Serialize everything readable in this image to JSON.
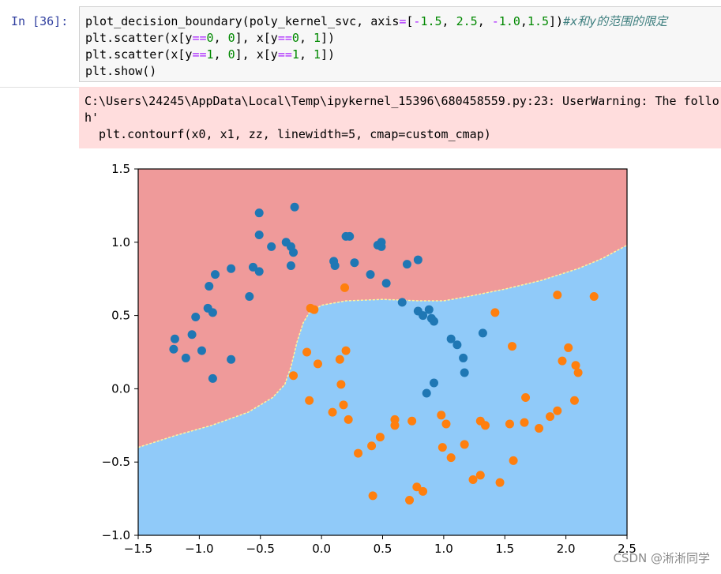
{
  "cell": {
    "prompt": "In  [36]:",
    "code_lines": [
      {
        "parts": [
          [
            "fn",
            "plot_decision_boundary(poly_kernel_svc, axis"
          ],
          [
            "op",
            "="
          ],
          [
            "fn",
            "["
          ],
          [
            "op",
            "-"
          ],
          [
            "num",
            "1.5"
          ],
          [
            "fn",
            ", "
          ],
          [
            "num",
            "2.5"
          ],
          [
            "fn",
            ", "
          ],
          [
            "op",
            "-"
          ],
          [
            "num",
            "1.0"
          ],
          [
            "fn",
            ","
          ],
          [
            "num",
            "1.5"
          ],
          [
            "fn",
            "])"
          ],
          [
            "cmt",
            "#x和y的范围的限定"
          ]
        ]
      },
      {
        "parts": [
          [
            "fn",
            "plt.scatter(x[y"
          ],
          [
            "op",
            "=="
          ],
          [
            "num",
            "0"
          ],
          [
            "fn",
            ", "
          ],
          [
            "num",
            "0"
          ],
          [
            "fn",
            "], x[y"
          ],
          [
            "op",
            "=="
          ],
          [
            "num",
            "0"
          ],
          [
            "fn",
            ", "
          ],
          [
            "num",
            "1"
          ],
          [
            "fn",
            "])"
          ]
        ]
      },
      {
        "parts": [
          [
            "fn",
            "plt.scatter(x[y"
          ],
          [
            "op",
            "=="
          ],
          [
            "num",
            "1"
          ],
          [
            "fn",
            ", "
          ],
          [
            "num",
            "0"
          ],
          [
            "fn",
            "], x[y"
          ],
          [
            "op",
            "=="
          ],
          [
            "num",
            "1"
          ],
          [
            "fn",
            ", "
          ],
          [
            "num",
            "1"
          ],
          [
            "fn",
            "])"
          ]
        ]
      },
      {
        "parts": [
          [
            "fn",
            "plt.show()"
          ]
        ]
      }
    ]
  },
  "stderr": {
    "lines": [
      "C:\\Users\\24245\\AppData\\Local\\Temp\\ipykernel_15396\\680458559.py:23: UserWarning: The follo",
      "h'",
      "  plt.contourf(x0, x1, zz, linewidth=5, cmap=custom_cmap)"
    ]
  },
  "watermark": "CSDN @淅淅同学",
  "colors": {
    "region_class0": "#ef9a9a",
    "region_class1": "#90caf9",
    "class0_points": "#1f77b4",
    "class1_points": "#ff7f0e",
    "boundary": "#fff59d"
  },
  "chart_data": {
    "type": "scatter",
    "title": "",
    "xlabel": "",
    "ylabel": "",
    "xlim": [
      -1.5,
      2.5
    ],
    "ylim": [
      -1.0,
      1.5
    ],
    "xticks": [
      "−1.5",
      "−1.0",
      "−0.5",
      "0.0",
      "0.5",
      "1.0",
      "1.5",
      "2.0",
      "2.5"
    ],
    "yticks": [
      "1.5",
      "1.0",
      "0.5",
      "0.0",
      "−0.5",
      "−1.0"
    ],
    "xtick_values": [
      -1.5,
      -1.0,
      -0.5,
      0.0,
      0.5,
      1.0,
      1.5,
      2.0,
      2.5
    ],
    "ytick_values": [
      1.5,
      1.0,
      0.5,
      0.0,
      -0.5,
      -1.0
    ],
    "decision_boundary": [
      [
        -1.5,
        -0.4
      ],
      [
        -1.2,
        -0.32
      ],
      [
        -0.9,
        -0.25
      ],
      [
        -0.6,
        -0.16
      ],
      [
        -0.4,
        -0.06
      ],
      [
        -0.3,
        0.03
      ],
      [
        -0.25,
        0.15
      ],
      [
        -0.2,
        0.32
      ],
      [
        -0.15,
        0.45
      ],
      [
        -0.1,
        0.52
      ],
      [
        0.0,
        0.57
      ],
      [
        0.2,
        0.6
      ],
      [
        0.5,
        0.61
      ],
      [
        0.8,
        0.6
      ],
      [
        1.0,
        0.6
      ],
      [
        1.2,
        0.63
      ],
      [
        1.5,
        0.68
      ],
      [
        1.8,
        0.74
      ],
      [
        2.1,
        0.82
      ],
      [
        2.3,
        0.89
      ],
      [
        2.5,
        0.98
      ]
    ],
    "series": [
      {
        "points": [
          [
            -1.21,
            0.27
          ],
          [
            -1.2,
            0.34
          ],
          [
            -1.11,
            0.21
          ],
          [
            -1.06,
            0.37
          ],
          [
            -1.03,
            0.49
          ],
          [
            -0.98,
            0.26
          ],
          [
            -0.93,
            0.55
          ],
          [
            -0.89,
            0.52
          ],
          [
            -0.92,
            0.7
          ],
          [
            -0.87,
            0.78
          ],
          [
            -0.89,
            0.07
          ],
          [
            -0.74,
            0.2
          ],
          [
            -0.74,
            0.82
          ],
          [
            -0.59,
            0.63
          ],
          [
            -0.51,
            1.2
          ],
          [
            -0.51,
            1.05
          ],
          [
            -0.56,
            0.83
          ],
          [
            -0.51,
            0.8
          ],
          [
            -0.41,
            0.97
          ],
          [
            -0.29,
            1.0
          ],
          [
            -0.25,
            0.97
          ],
          [
            -0.23,
            0.93
          ],
          [
            -0.22,
            1.24
          ],
          [
            -0.25,
            0.84
          ],
          [
            0.1,
            0.87
          ],
          [
            0.11,
            0.84
          ],
          [
            0.2,
            1.04
          ],
          [
            0.23,
            1.04
          ],
          [
            0.27,
            0.86
          ],
          [
            0.4,
            0.78
          ],
          [
            0.46,
            0.98
          ],
          [
            0.49,
            1.0
          ],
          [
            0.49,
            0.97
          ],
          [
            0.53,
            0.72
          ],
          [
            0.66,
            0.59
          ],
          [
            0.7,
            0.85
          ],
          [
            0.79,
            0.88
          ],
          [
            0.79,
            0.53
          ],
          [
            0.83,
            0.5
          ],
          [
            0.88,
            0.54
          ],
          [
            0.9,
            0.48
          ],
          [
            0.92,
            0.46
          ],
          [
            1.06,
            0.34
          ],
          [
            1.11,
            0.3
          ],
          [
            1.16,
            0.21
          ],
          [
            1.17,
            0.11
          ],
          [
            1.32,
            0.38
          ],
          [
            0.86,
            -0.03
          ],
          [
            0.92,
            0.04
          ]
        ]
      },
      {
        "points": [
          [
            -0.12,
            0.25
          ],
          [
            -0.09,
            0.55
          ],
          [
            -0.06,
            0.54
          ],
          [
            -0.1,
            -0.08
          ],
          [
            -0.03,
            0.17
          ],
          [
            -0.23,
            0.09
          ],
          [
            0.09,
            -0.16
          ],
          [
            0.15,
            0.2
          ],
          [
            0.19,
            0.69
          ],
          [
            0.2,
            0.26
          ],
          [
            0.16,
            0.03
          ],
          [
            0.18,
            -0.11
          ],
          [
            0.22,
            -0.21
          ],
          [
            0.3,
            -0.44
          ],
          [
            0.41,
            -0.39
          ],
          [
            0.42,
            -0.73
          ],
          [
            0.48,
            -0.33
          ],
          [
            0.6,
            -0.21
          ],
          [
            0.6,
            -0.25
          ],
          [
            0.74,
            -0.22
          ],
          [
            0.72,
            -0.76
          ],
          [
            0.78,
            -0.67
          ],
          [
            0.83,
            -0.7
          ],
          [
            0.98,
            -0.18
          ],
          [
            0.99,
            -0.4
          ],
          [
            1.06,
            -0.47
          ],
          [
            1.02,
            -0.24
          ],
          [
            1.17,
            -0.38
          ],
          [
            1.24,
            -0.62
          ],
          [
            1.3,
            -0.22
          ],
          [
            1.34,
            -0.25
          ],
          [
            1.3,
            -0.59
          ],
          [
            1.42,
            0.52
          ],
          [
            1.46,
            -0.64
          ],
          [
            1.54,
            -0.24
          ],
          [
            1.56,
            0.29
          ],
          [
            1.57,
            -0.49
          ],
          [
            1.66,
            -0.23
          ],
          [
            1.67,
            -0.06
          ],
          [
            1.78,
            -0.27
          ],
          [
            1.87,
            -0.19
          ],
          [
            1.93,
            -0.15
          ],
          [
            1.93,
            0.64
          ],
          [
            1.97,
            0.19
          ],
          [
            2.02,
            0.28
          ],
          [
            2.07,
            -0.08
          ],
          [
            2.08,
            0.16
          ],
          [
            2.1,
            0.11
          ],
          [
            2.23,
            0.63
          ]
        ]
      }
    ]
  }
}
